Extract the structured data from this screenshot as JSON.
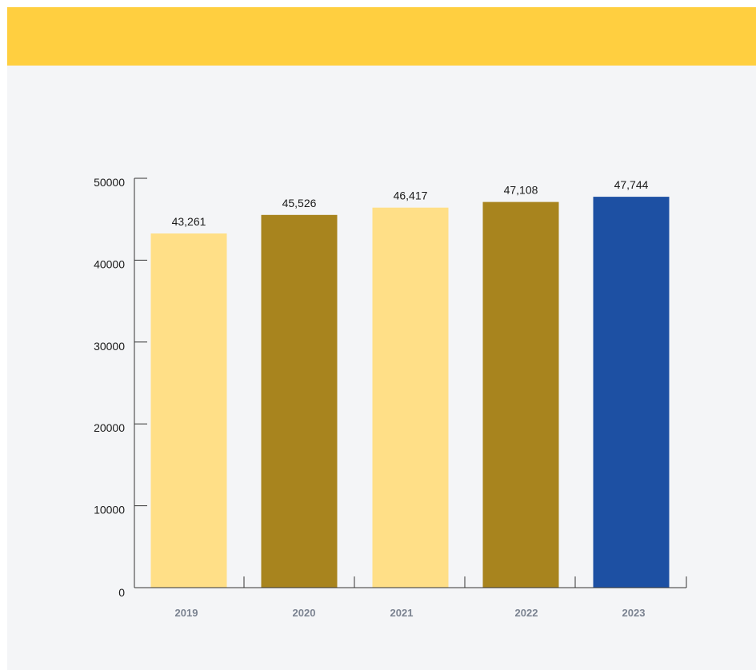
{
  "colors": {
    "banner": "#ffcf40",
    "background": "#f4f5f7",
    "axis": "#333333"
  },
  "chart_data": {
    "type": "bar",
    "title": "",
    "xlabel": "",
    "ylabel": "",
    "ylim": [
      0,
      50000
    ],
    "yticks": [
      0,
      10000,
      20000,
      30000,
      40000,
      50000
    ],
    "grid": false,
    "categories": [
      "2019",
      "2020",
      "2021",
      "2022",
      "2023"
    ],
    "values": [
      43261,
      45526,
      46417,
      47108,
      47744
    ],
    "value_labels": [
      "43,261",
      "45,526",
      "46,417",
      "47,108",
      "47,744"
    ],
    "bar_colors": [
      "#ffdf87",
      "#a8841e",
      "#ffdf87",
      "#a8841e",
      "#1d50a3"
    ]
  }
}
